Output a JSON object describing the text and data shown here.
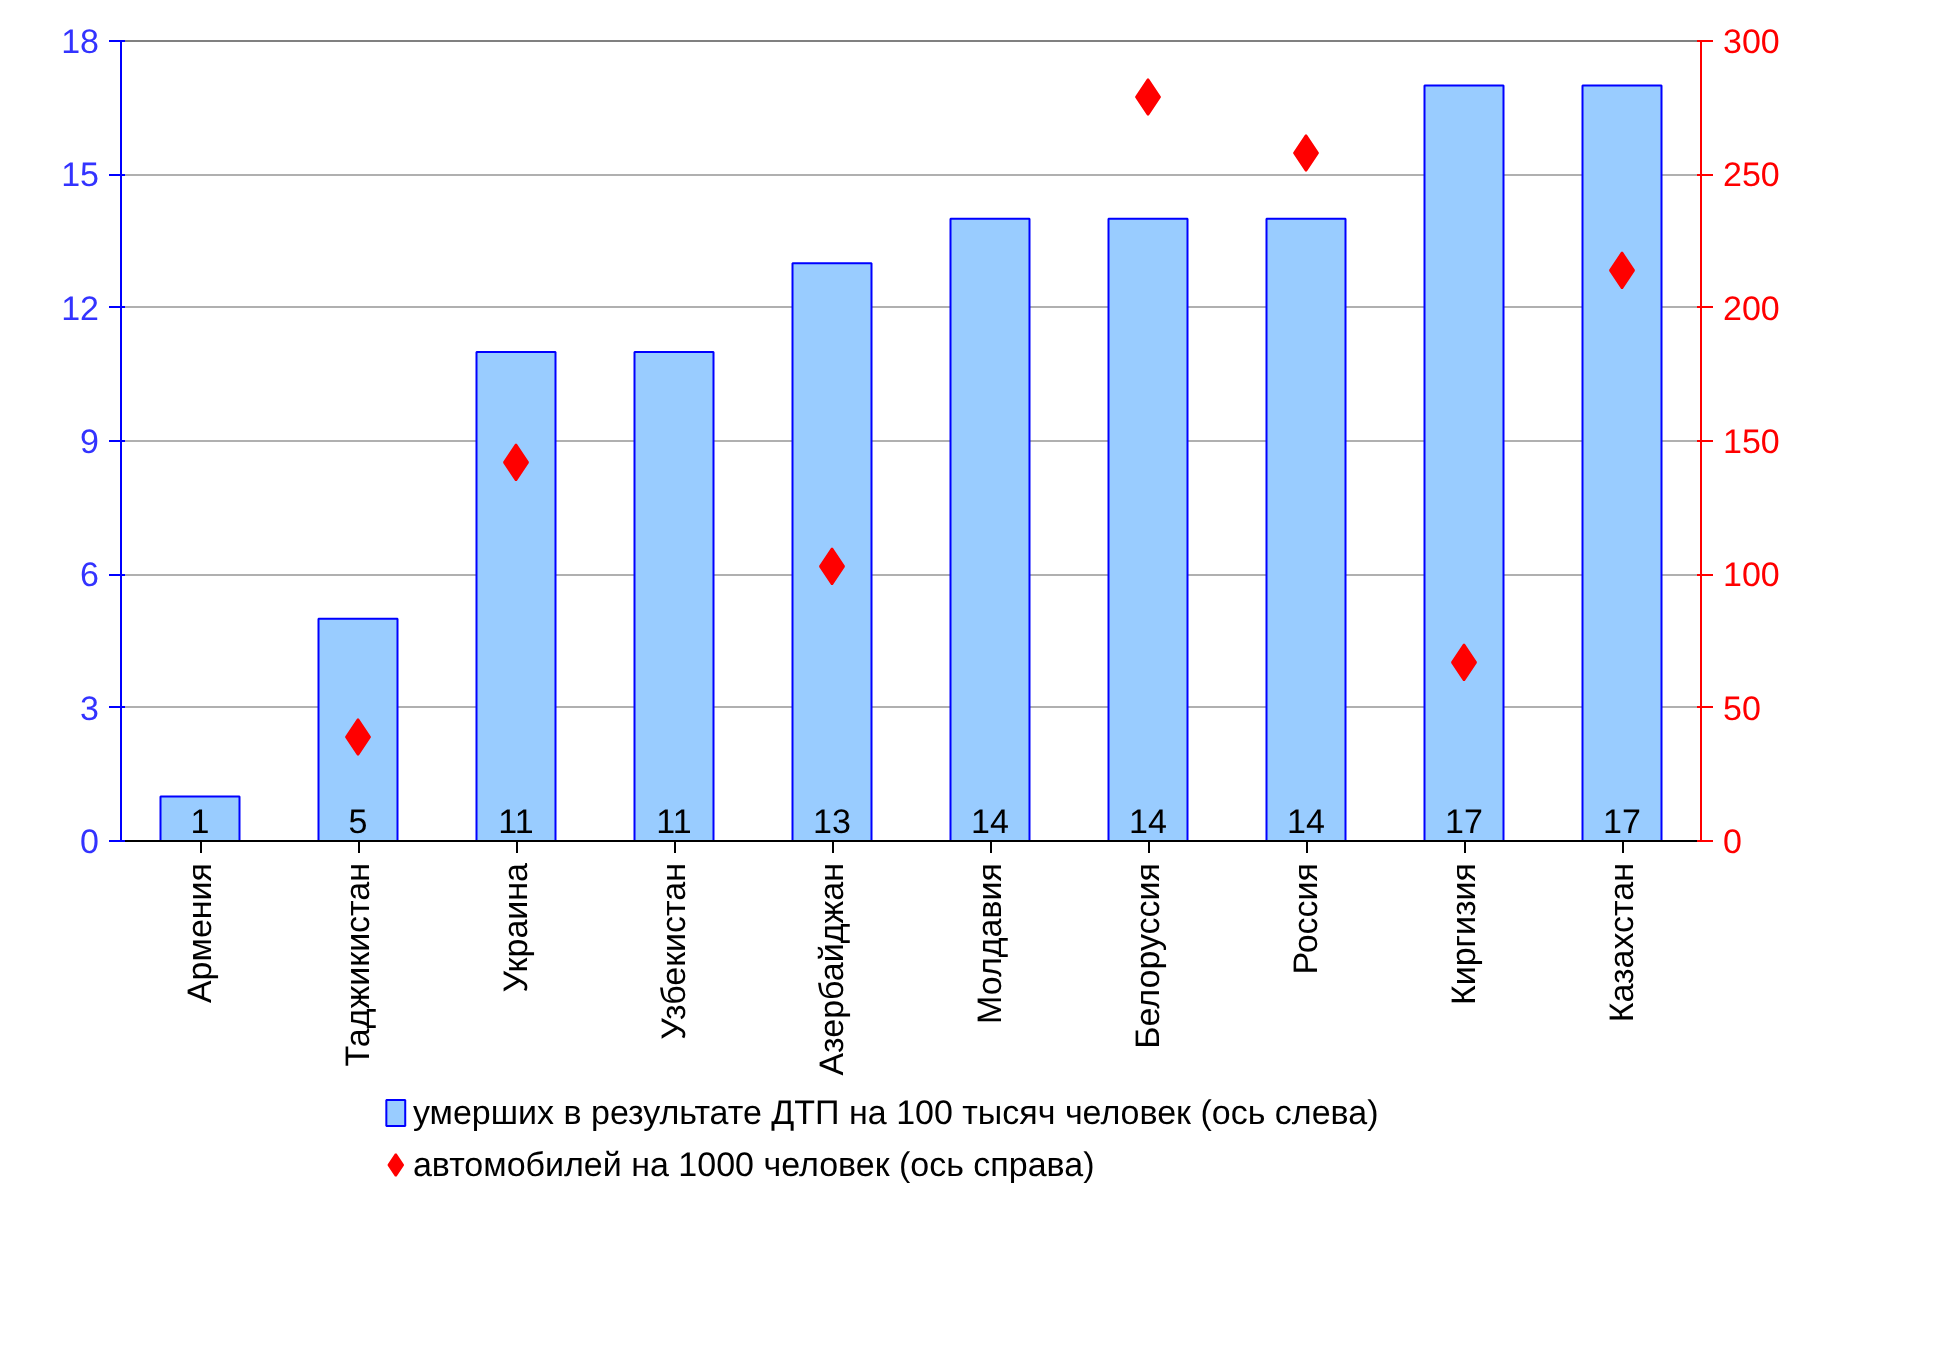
{
  "chart_data": {
    "type": "bar",
    "categories": [
      "Армения",
      "Таджикистан",
      "Украина",
      "Узбекистан",
      "Азербайджан",
      "Молдавия",
      "Белоруссия",
      "Россия",
      "Киргизия",
      "Казахстан"
    ],
    "series": [
      {
        "name": "умерших в результате ДТП на 100 тысяч человек (ось слева)",
        "color": "#99ccff",
        "values": [
          1,
          5,
          11,
          11,
          13,
          14,
          14,
          14,
          17,
          17
        ],
        "value_labels": [
          "1",
          "5",
          "11",
          "11",
          "13",
          "14",
          "14",
          "14",
          "17",
          "17"
        ]
      },
      {
        "name": "автомобилей на 1000 человек (ось справа)",
        "type": "scatter",
        "axis": "y2",
        "marker": "diamond",
        "color": "#ff0000",
        "values": [
          null,
          39,
          142,
          null,
          103,
          null,
          279,
          258,
          67,
          214
        ]
      }
    ],
    "ylim": [
      0,
      18
    ],
    "yticks": [
      0,
      3,
      6,
      9,
      12,
      15,
      18
    ],
    "y2lim": [
      0,
      300
    ],
    "y2ticks": [
      0,
      50,
      100,
      150,
      200,
      250,
      300
    ],
    "grid": "y",
    "legend": "bottom"
  }
}
